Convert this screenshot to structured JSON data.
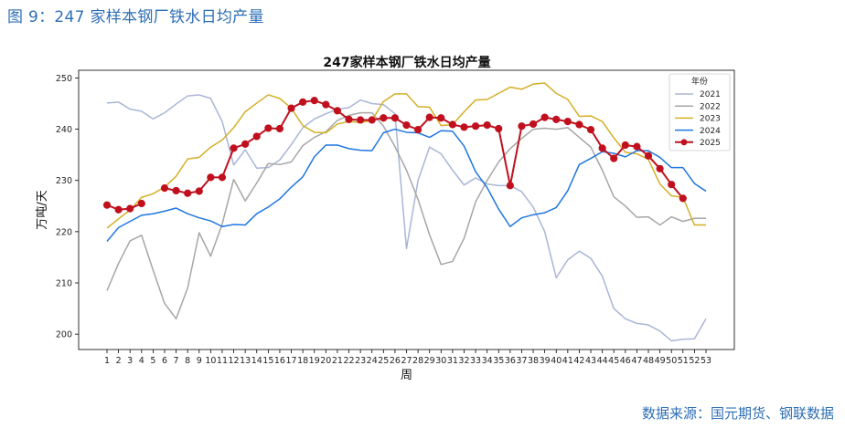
{
  "caption": "图 9：247 家样本钢厂铁水日均产量",
  "source": "数据来源：国元期货、钢联数据",
  "chart_data": {
    "type": "line",
    "title": "247家样本钢厂铁水日均产量",
    "xlabel": "周",
    "ylabel": "万吨/天",
    "xlim": [
      1,
      53
    ],
    "ylim": [
      197,
      251.5
    ],
    "yticks": [
      200,
      210,
      220,
      230,
      240,
      250
    ],
    "x": [
      1,
      2,
      3,
      4,
      5,
      6,
      7,
      8,
      9,
      10,
      11,
      12,
      13,
      14,
      15,
      16,
      17,
      18,
      19,
      20,
      21,
      22,
      23,
      24,
      25,
      26,
      27,
      28,
      29,
      30,
      31,
      32,
      33,
      34,
      35,
      36,
      37,
      38,
      39,
      40,
      41,
      42,
      43,
      44,
      45,
      46,
      47,
      48,
      49,
      50,
      51,
      52,
      53
    ],
    "grid": false,
    "legend": {
      "title": "年份",
      "position": "top-right"
    },
    "series": [
      {
        "name": "2021",
        "color": "#a8b6d6",
        "marker": false,
        "values": [
          245.1,
          245.3,
          243.9,
          243.5,
          242.0,
          243.2,
          244.9,
          246.5,
          246.7,
          246.0,
          241.5,
          233.0,
          236.0,
          232.4,
          232.5,
          234.0,
          237.0,
          240.3,
          242.0,
          243.0,
          243.9,
          244.2,
          245.7,
          245.0,
          244.8,
          243.0,
          216.7,
          230.0,
          236.5,
          235.2,
          232.0,
          229.1,
          230.5,
          229.3,
          229.0,
          229.0,
          227.8,
          224.8,
          220.0,
          211.0,
          214.5,
          216.2,
          214.8,
          211.3,
          205.0,
          203.0,
          202.1,
          201.8,
          200.6,
          198.7,
          199.0,
          199.1,
          203.0
        ]
      },
      {
        "name": "2022",
        "color": "#a6a6a6",
        "marker": false,
        "values": [
          208.5,
          213.8,
          218.2,
          219.3,
          212.5,
          206.0,
          203.0,
          209.0,
          219.8,
          215.2,
          221.5,
          230.2,
          226.0,
          229.5,
          233.3,
          233.1,
          233.6,
          236.8,
          238.4,
          239.5,
          241.7,
          242.7,
          243.2,
          243.2,
          240.6,
          236.6,
          232.0,
          226.3,
          219.4,
          213.6,
          214.2,
          218.7,
          225.8,
          230.0,
          233.6,
          236.2,
          238.2,
          240.0,
          240.2,
          240.0,
          240.3,
          238.4,
          236.5,
          232.0,
          226.8,
          225.0,
          222.8,
          222.9,
          221.3,
          222.9,
          222.0,
          222.6,
          222.6
        ]
      },
      {
        "name": "2023",
        "color": "#d4af27",
        "marker": false,
        "values": [
          220.7,
          222.5,
          224.2,
          226.7,
          227.4,
          228.7,
          230.8,
          234.2,
          234.5,
          236.5,
          237.9,
          240.3,
          243.4,
          245.1,
          246.7,
          246.0,
          244.1,
          240.7,
          239.4,
          239.3,
          241.0,
          241.5,
          241.3,
          241.7,
          245.4,
          246.9,
          246.9,
          244.4,
          244.3,
          240.7,
          240.9,
          243.4,
          245.7,
          245.8,
          247.0,
          248.2,
          247.8,
          248.8,
          249.0,
          247.0,
          245.8,
          242.5,
          242.6,
          241.5,
          238.3,
          235.5,
          235.2,
          234.1,
          229.3,
          227.0,
          226.7,
          221.3,
          221.3
        ]
      },
      {
        "name": "2024",
        "color": "#1f76e0",
        "marker": false,
        "values": [
          218.1,
          220.8,
          222.0,
          223.2,
          223.5,
          224.0,
          224.6,
          223.5,
          222.7,
          222.1,
          221.0,
          221.4,
          221.3,
          223.5,
          224.8,
          226.4,
          228.7,
          230.7,
          234.6,
          236.9,
          236.9,
          236.2,
          235.9,
          235.8,
          239.3,
          240.0,
          239.4,
          239.3,
          238.4,
          239.7,
          239.6,
          236.7,
          231.7,
          228.6,
          224.4,
          221.0,
          222.7,
          223.3,
          223.7,
          224.7,
          228.0,
          233.1,
          234.3,
          235.6,
          235.3,
          234.6,
          235.8,
          235.8,
          234.5,
          232.5,
          232.5,
          229.4,
          227.9
        ]
      },
      {
        "name": "2025",
        "color": "#c0101e",
        "marker": true,
        "values": [
          225.2,
          224.3,
          224.5,
          225.5,
          null,
          228.5,
          228.0,
          227.5,
          227.9,
          230.6,
          230.6,
          236.3,
          237.1,
          238.6,
          240.2,
          240.1,
          244.1,
          245.3,
          245.6,
          244.8,
          243.6,
          241.9,
          241.8,
          241.8,
          242.2,
          242.2,
          240.8,
          239.9,
          242.3,
          242.2,
          240.9,
          240.4,
          240.6,
          240.8,
          240.1,
          229.0,
          240.6,
          241.0,
          242.3,
          241.9,
          241.5,
          240.9,
          239.9,
          236.3,
          234.3,
          236.9,
          236.6,
          234.8,
          232.3,
          229.2,
          226.5,
          null,
          null
        ]
      }
    ]
  }
}
